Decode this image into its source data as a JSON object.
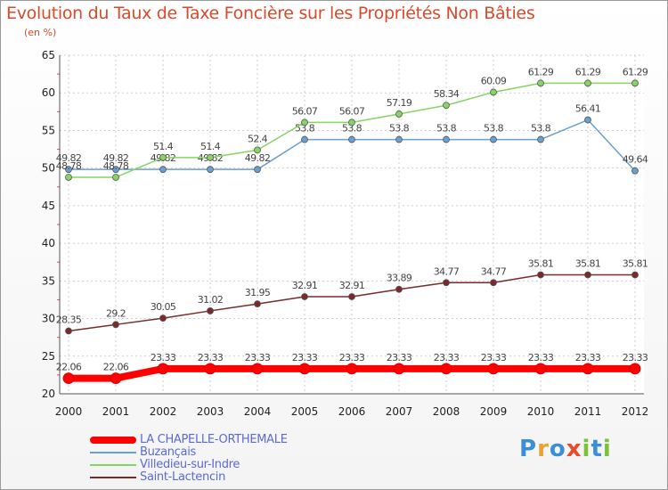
{
  "title": "Evolution du Taux de Taxe Foncière sur les Propriétés Non Bâties",
  "subtitle": "(en %)",
  "logo_letters": [
    {
      "ch": "P",
      "color": "#3a8fd8"
    },
    {
      "ch": "r",
      "color": "#e8a23a"
    },
    {
      "ch": "o",
      "color": "#3a8fd8"
    },
    {
      "ch": "x",
      "color": "#e84a2a"
    },
    {
      "ch": "i",
      "color": "#7ac23a"
    },
    {
      "ch": "t",
      "color": "#3a8fd8"
    },
    {
      "ch": "i",
      "color": "#7ac23a"
    }
  ],
  "chart_data": {
    "type": "line",
    "x": [
      "2000",
      "2001",
      "2002",
      "2003",
      "2004",
      "2005",
      "2006",
      "2007",
      "2008",
      "2009",
      "2010",
      "2011",
      "2012"
    ],
    "ylim": [
      20,
      65
    ],
    "yticks": [
      "20",
      "25",
      "30",
      "35",
      "40",
      "45",
      "50",
      "55",
      "60",
      "65"
    ],
    "grid": true,
    "legend_position": "bottom-left",
    "series": [
      {
        "name": "LA CHAPELLE-ORTHEMALE",
        "color": "#ff0000",
        "width": 8,
        "values": [
          22.06,
          22.06,
          23.33,
          23.33,
          23.33,
          23.33,
          23.33,
          23.33,
          23.33,
          23.33,
          23.33,
          23.33,
          23.33
        ],
        "labels": [
          "22.06",
          "22.06",
          "23.33",
          "23.33",
          "23.33",
          "23.33",
          "23.33",
          "23.33",
          "23.33",
          "23.33",
          "23.33",
          "23.33",
          "23.33"
        ]
      },
      {
        "name": "Buzançais",
        "color": "#6a9fcf",
        "width": 1.5,
        "values": [
          49.82,
          49.82,
          49.82,
          49.82,
          49.82,
          53.8,
          53.8,
          53.8,
          53.8,
          53.8,
          53.8,
          56.41,
          49.64
        ],
        "labels": [
          "49.82",
          "49.82",
          "49.82",
          "49.82",
          "49.82",
          "53.8",
          "53.8",
          "53.8",
          "53.8",
          "53.8",
          "53.8",
          "56.41",
          "49.64"
        ]
      },
      {
        "name": "Villedieu-sur-Indre",
        "color": "#86d464",
        "width": 1.5,
        "values": [
          48.78,
          48.78,
          51.4,
          51.4,
          52.4,
          56.07,
          56.07,
          57.19,
          58.34,
          60.09,
          61.29,
          61.29,
          61.29
        ],
        "labels": [
          "48.78",
          "48.78",
          "51.4",
          "51.4",
          "52.4",
          "56.07",
          "56.07",
          "57.19",
          "58.34",
          "60.09",
          "61.29",
          "61.29",
          "61.29"
        ]
      },
      {
        "name": "Saint-Lactencin",
        "color": "#7a2a2a",
        "width": 1.5,
        "values": [
          28.35,
          29.2,
          30.05,
          31.02,
          31.95,
          32.91,
          32.91,
          33.89,
          34.77,
          34.77,
          35.81,
          35.81,
          35.81
        ],
        "labels": [
          "28.35",
          "29.2",
          "30.05",
          "31.02",
          "31.95",
          "32.91",
          "32.91",
          "33.89",
          "34.77",
          "34.77",
          "35.81",
          "35.81",
          "35.81"
        ]
      }
    ]
  }
}
